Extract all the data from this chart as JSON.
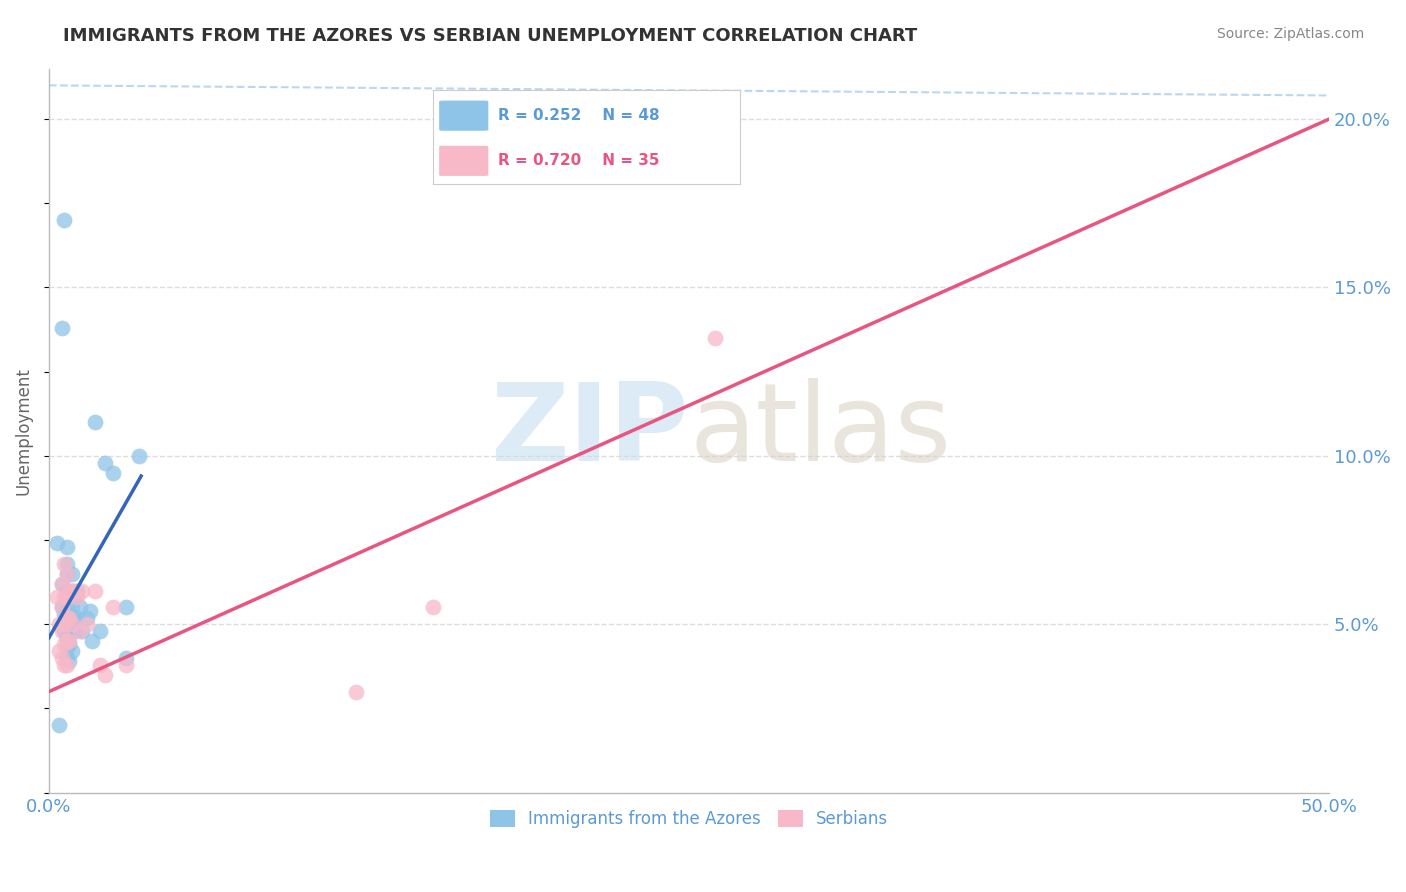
{
  "title": "IMMIGRANTS FROM THE AZORES VS SERBIAN UNEMPLOYMENT CORRELATION CHART",
  "source": "Source: ZipAtlas.com",
  "ylabel": "Unemployment",
  "xlim": [
    0,
    0.5
  ],
  "ylim": [
    0.0,
    0.215
  ],
  "yticks": [
    0.05,
    0.1,
    0.15,
    0.2
  ],
  "ytick_labels": [
    "5.0%",
    "10.0%",
    "15.0%",
    "20.0%"
  ],
  "legend_blue_r": "R = 0.252",
  "legend_blue_n": "N = 48",
  "legend_pink_r": "R = 0.720",
  "legend_pink_n": "N = 35",
  "blue_color": "#8ec4e8",
  "pink_color": "#f7b8c8",
  "blue_line_color": "#3366bb",
  "pink_line_color": "#e85580",
  "label_color": "#5b9bd5",
  "title_color": "#333333",
  "source_color": "#888888",
  "blue_scatter": [
    [
      0.003,
      0.074
    ],
    [
      0.005,
      0.062
    ],
    [
      0.005,
      0.055
    ],
    [
      0.006,
      0.053
    ],
    [
      0.006,
      0.049
    ],
    [
      0.006,
      0.048
    ],
    [
      0.007,
      0.073
    ],
    [
      0.007,
      0.068
    ],
    [
      0.007,
      0.065
    ],
    [
      0.007,
      0.06
    ],
    [
      0.007,
      0.058
    ],
    [
      0.007,
      0.055
    ],
    [
      0.007,
      0.052
    ],
    [
      0.007,
      0.05
    ],
    [
      0.007,
      0.046
    ],
    [
      0.007,
      0.043
    ],
    [
      0.007,
      0.04
    ],
    [
      0.008,
      0.053
    ],
    [
      0.008,
      0.05
    ],
    [
      0.008,
      0.048
    ],
    [
      0.008,
      0.044
    ],
    [
      0.008,
      0.039
    ],
    [
      0.009,
      0.065
    ],
    [
      0.009,
      0.06
    ],
    [
      0.009,
      0.055
    ],
    [
      0.009,
      0.052
    ],
    [
      0.009,
      0.048
    ],
    [
      0.009,
      0.042
    ],
    [
      0.01,
      0.058
    ],
    [
      0.01,
      0.052
    ],
    [
      0.01,
      0.048
    ],
    [
      0.011,
      0.06
    ],
    [
      0.011,
      0.052
    ],
    [
      0.012,
      0.055
    ],
    [
      0.013,
      0.048
    ],
    [
      0.015,
      0.052
    ],
    [
      0.016,
      0.054
    ],
    [
      0.017,
      0.045
    ],
    [
      0.018,
      0.11
    ],
    [
      0.02,
      0.048
    ],
    [
      0.022,
      0.098
    ],
    [
      0.025,
      0.095
    ],
    [
      0.03,
      0.04
    ],
    [
      0.03,
      0.055
    ],
    [
      0.035,
      0.1
    ],
    [
      0.006,
      0.17
    ],
    [
      0.005,
      0.138
    ],
    [
      0.004,
      0.02
    ]
  ],
  "pink_scatter": [
    [
      0.003,
      0.058
    ],
    [
      0.004,
      0.05
    ],
    [
      0.004,
      0.042
    ],
    [
      0.005,
      0.062
    ],
    [
      0.005,
      0.055
    ],
    [
      0.005,
      0.048
    ],
    [
      0.005,
      0.04
    ],
    [
      0.006,
      0.068
    ],
    [
      0.006,
      0.058
    ],
    [
      0.006,
      0.05
    ],
    [
      0.006,
      0.044
    ],
    [
      0.006,
      0.038
    ],
    [
      0.007,
      0.065
    ],
    [
      0.007,
      0.058
    ],
    [
      0.007,
      0.052
    ],
    [
      0.007,
      0.045
    ],
    [
      0.007,
      0.038
    ],
    [
      0.008,
      0.06
    ],
    [
      0.008,
      0.052
    ],
    [
      0.008,
      0.045
    ],
    [
      0.009,
      0.06
    ],
    [
      0.009,
      0.05
    ],
    [
      0.01,
      0.06
    ],
    [
      0.011,
      0.058
    ],
    [
      0.012,
      0.048
    ],
    [
      0.013,
      0.06
    ],
    [
      0.015,
      0.05
    ],
    [
      0.018,
      0.06
    ],
    [
      0.02,
      0.038
    ],
    [
      0.022,
      0.035
    ],
    [
      0.025,
      0.055
    ],
    [
      0.03,
      0.038
    ],
    [
      0.12,
      0.03
    ],
    [
      0.15,
      0.055
    ],
    [
      0.26,
      0.135
    ]
  ],
  "blue_line_x": [
    0.0,
    0.036
  ],
  "blue_line_y": [
    0.046,
    0.094
  ],
  "pink_line_x": [
    0.0,
    0.5
  ],
  "pink_line_y": [
    0.03,
    0.2
  ],
  "diag_line_x": [
    0.0,
    0.5
  ],
  "diag_line_y": [
    0.21,
    0.207
  ]
}
